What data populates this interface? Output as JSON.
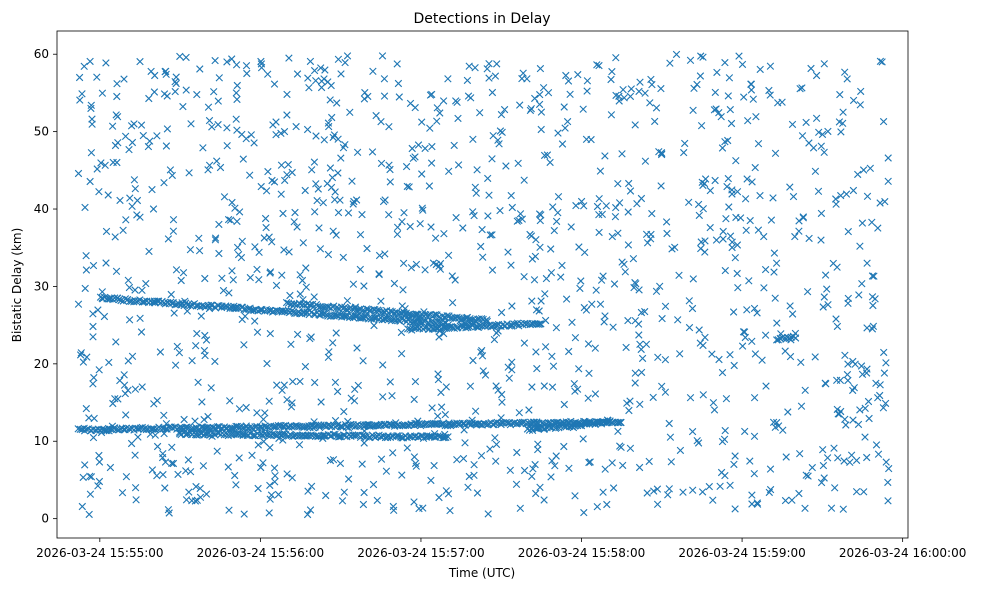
{
  "chart_data": {
    "type": "scatter",
    "title": "Detections in Delay",
    "xlabel": "Time (UTC)",
    "ylabel": "Bistatic Delay (km)",
    "marker": "x",
    "color": "#1f77b4",
    "xlim": [
      "2026-03-24 15:54:44",
      "2026-03-24 16:00:02"
    ],
    "ylim": [
      -2.5,
      63
    ],
    "x_tick_labels": [
      "2026-03-24 15:55:00",
      "2026-03-24 15:56:00",
      "2026-03-24 15:57:00",
      "2026-03-24 15:58:00",
      "2026-03-24 15:59:00",
      "2026-03-24 16:00:00"
    ],
    "y_tick_labels": [
      "0",
      "10",
      "20",
      "30",
      "40",
      "50",
      "60"
    ],
    "x_range": [
      "2026-03-24 15:54:52",
      "2026-03-24 15:59:55"
    ],
    "tracks": [
      {
        "name": "",
        "x": [
          "2026-03-24 15:55:00",
          "2026-03-24 15:57:10"
        ],
        "y": [
          28.5,
          25.2
        ]
      },
      {
        "name": "",
        "x": [
          "2026-03-24 15:56:10",
          "2026-03-24 15:57:25"
        ],
        "y": [
          27.8,
          25.6
        ]
      },
      {
        "name": "",
        "x": [
          "2026-03-24 15:56:55",
          "2026-03-24 15:57:45"
        ],
        "y": [
          24.5,
          25.2
        ]
      },
      {
        "name": "",
        "x": [
          "2026-03-24 15:54:52",
          "2026-03-24 15:58:15"
        ],
        "y": [
          11.5,
          12.5
        ]
      },
      {
        "name": "",
        "x": [
          "2026-03-24 15:55:30",
          "2026-03-24 15:57:10"
        ],
        "y": [
          11.0,
          10.5
        ]
      },
      {
        "name": "",
        "x": [
          "2026-03-24 15:57:40",
          "2026-03-24 15:58:10"
        ],
        "y": [
          11.5,
          12.5
        ]
      },
      {
        "name": "",
        "x": [
          "2026-03-24 15:59:13",
          "2026-03-24 15:59:20"
        ],
        "y": [
          23.2,
          23.5
        ]
      }
    ],
    "clutter_points_shown": 1300,
    "clutter_y_range": [
      0.5,
      60
    ]
  }
}
